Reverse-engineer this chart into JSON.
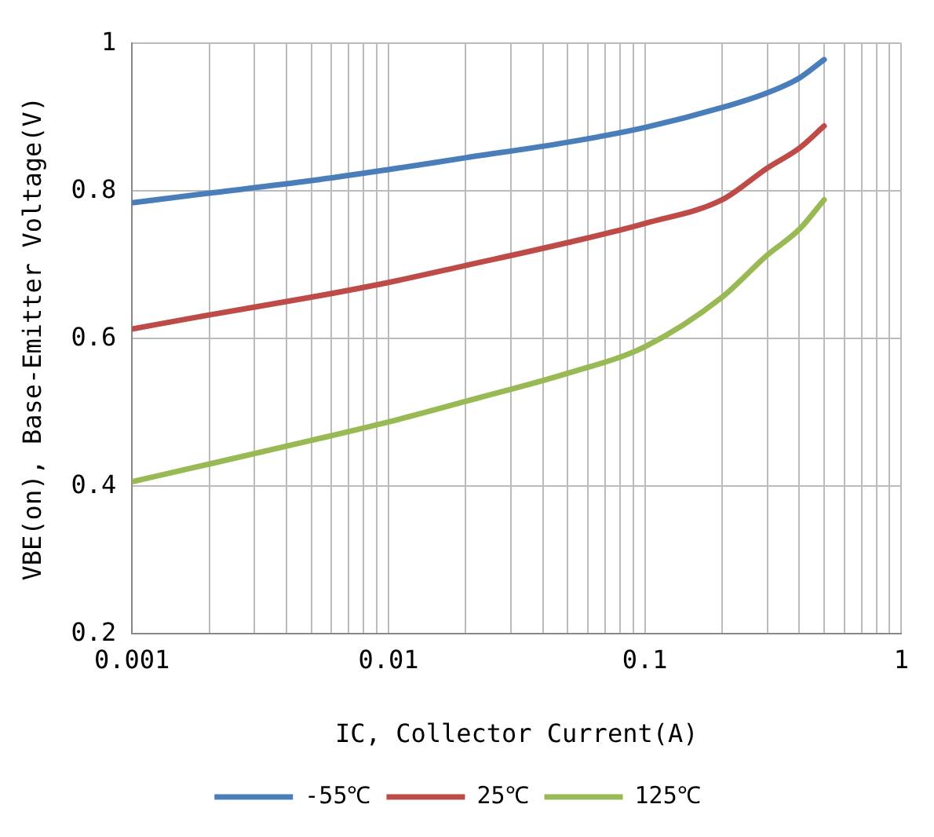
{
  "chart_data": {
    "type": "line",
    "xlabel": "IC, Collector Current(A)",
    "ylabel": "VBE(on), Base-Emitter Voltage(V)",
    "log": "x",
    "grid": true,
    "legend": "bottom",
    "marker": "none",
    "line_style": "solid",
    "xlim": [
      0.001,
      1
    ],
    "xticks": [
      {
        "value": 0.001,
        "label": "0.001"
      },
      {
        "value": 0.002,
        "label": null
      },
      {
        "value": 0.003,
        "label": null
      },
      {
        "value": 0.004,
        "label": null
      },
      {
        "value": 0.005,
        "label": null
      },
      {
        "value": 0.006,
        "label": null
      },
      {
        "value": 0.007,
        "label": null
      },
      {
        "value": 0.008,
        "label": null
      },
      {
        "value": 0.009,
        "label": null
      },
      {
        "value": 0.01,
        "label": "0.01"
      },
      {
        "value": 0.02,
        "label": null
      },
      {
        "value": 0.03,
        "label": null
      },
      {
        "value": 0.04,
        "label": null
      },
      {
        "value": 0.05,
        "label": null
      },
      {
        "value": 0.06,
        "label": null
      },
      {
        "value": 0.07,
        "label": null
      },
      {
        "value": 0.08,
        "label": null
      },
      {
        "value": 0.09,
        "label": null
      },
      {
        "value": 0.1,
        "label": "0.1"
      },
      {
        "value": 0.2,
        "label": null
      },
      {
        "value": 0.3,
        "label": null
      },
      {
        "value": 0.4,
        "label": null
      },
      {
        "value": 0.5,
        "label": null
      },
      {
        "value": 0.6,
        "label": null
      },
      {
        "value": 0.7,
        "label": null
      },
      {
        "value": 0.8,
        "label": null
      },
      {
        "value": 0.9,
        "label": null
      },
      {
        "value": 1,
        "label": "1"
      }
    ],
    "ylim": [
      0.2,
      1
    ],
    "yticks": [
      {
        "value": 0.2,
        "label": "0.2"
      },
      {
        "value": 0.4,
        "label": "0.4"
      },
      {
        "value": 0.6,
        "label": "0.6"
      },
      {
        "value": 0.8,
        "label": "0.8"
      },
      {
        "value": 1,
        "label": "1"
      }
    ],
    "x": [
      0.001,
      0.002,
      0.005,
      0.01,
      0.02,
      0.05,
      0.1,
      0.2,
      0.3,
      0.4,
      0.5
    ],
    "series": [
      {
        "name": "-55℃",
        "color": "#4a7ebb",
        "values": [
          0.784,
          0.797,
          0.814,
          0.829,
          0.845,
          0.866,
          0.886,
          0.913,
          0.933,
          0.953,
          0.978
        ]
      },
      {
        "name": "25℃",
        "color": "#be4b48",
        "values": [
          0.613,
          0.632,
          0.656,
          0.676,
          0.699,
          0.73,
          0.756,
          0.788,
          0.831,
          0.858,
          0.888
        ]
      },
      {
        "name": "125℃",
        "color": "#98b954",
        "values": [
          0.406,
          0.43,
          0.462,
          0.487,
          0.515,
          0.553,
          0.589,
          0.656,
          0.713,
          0.748,
          0.788
        ]
      }
    ]
  }
}
